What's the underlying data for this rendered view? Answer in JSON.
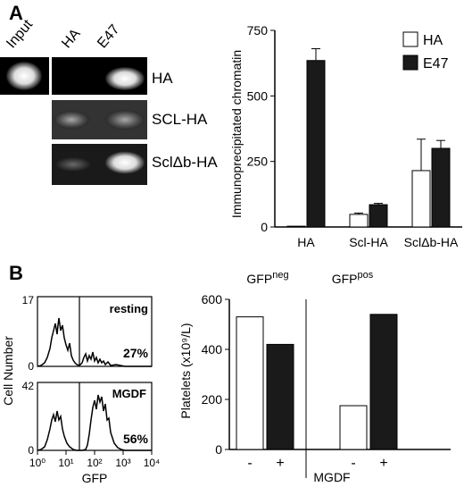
{
  "panel_a": {
    "letter": "A",
    "gel": {
      "lanes": [
        "Input",
        "HA",
        "E47"
      ],
      "rows": [
        "HA",
        "SCL-HA",
        "SclΔb-HA"
      ]
    }
  },
  "panel_b": {
    "letter": "B",
    "histograms": {
      "ylabel": "Cell Number",
      "xlabel": "GFP",
      "x_tick_labels": [
        "10⁰",
        "10¹",
        "10²",
        "10³",
        "10⁴"
      ],
      "top": {
        "ymax_label": "17",
        "ymin_label": "0",
        "condition": "resting",
        "percent": "27%"
      },
      "bottom": {
        "ymax_label": "42",
        "ymin_label": "0",
        "condition": "MGDF",
        "percent": "56%"
      }
    }
  },
  "colors": {
    "open": "#ffffff",
    "filled": "#1a1a1a",
    "axis": "#000000"
  },
  "chart_data": [
    {
      "type": "bar",
      "ylabel": "Immunoprecipitated chromatin",
      "ylim": [
        0,
        750
      ],
      "y_ticks": [
        0,
        250,
        500,
        750
      ],
      "categories": [
        "HA",
        "Scl-HA",
        "SclΔb-HA"
      ],
      "legend_placement": "top-right",
      "series": [
        {
          "name": "HA",
          "fill": "open",
          "values": [
            3,
            48,
            215
          ],
          "errors": [
            0,
            5,
            120
          ]
        },
        {
          "name": "E47",
          "fill": "filled",
          "values": [
            635,
            85,
            300
          ],
          "errors": [
            45,
            5,
            30
          ]
        }
      ]
    },
    {
      "type": "bar",
      "ylabel": "Platelets (x10⁹/L)",
      "ylim": [
        0,
        600
      ],
      "y_ticks": [
        0,
        200,
        400,
        600
      ],
      "group_labels": [
        "GFPneg",
        "GFPpos"
      ],
      "x_tick_labels": [
        "-",
        "+",
        "-",
        "+"
      ],
      "xlabel": "MGDF",
      "values": [
        530,
        420,
        175,
        540
      ],
      "fills": [
        "open",
        "filled",
        "open",
        "filled"
      ]
    }
  ]
}
